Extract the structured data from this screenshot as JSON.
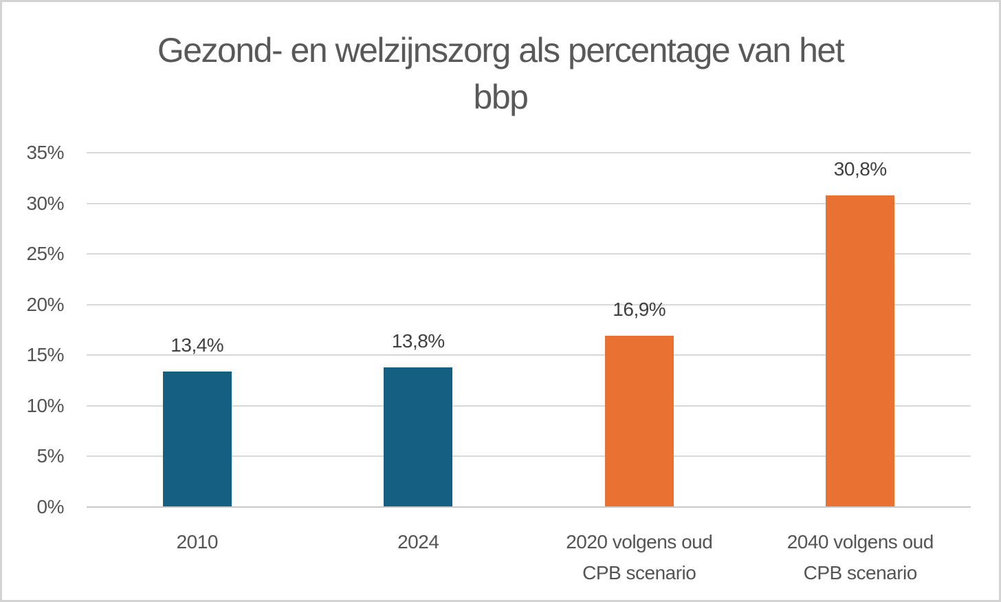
{
  "title_lines": [
    "Gezond- en welzijnszorg als percentage van het",
    "bbp"
  ],
  "chart_data": {
    "type": "bar",
    "title": "Gezond- en welzijnszorg als percentage van het bbp",
    "categories": [
      "2010",
      "2024",
      "2020 volgens oud CPB scenario",
      "2040 volgens oud CPB scenario"
    ],
    "category_label_lines": [
      [
        "2010"
      ],
      [
        "2024"
      ],
      [
        "2020 volgens oud",
        "CPB scenario"
      ],
      [
        "2040 volgens oud",
        "CPB scenario"
      ]
    ],
    "values": [
      13.4,
      13.8,
      16.9,
      30.8
    ],
    "value_labels": [
      "13,4%",
      "13,8%",
      "16,9%",
      "30,8%"
    ],
    "bar_colors": [
      "#156082",
      "#156082",
      "#E97132",
      "#E97132"
    ],
    "xlabel": "",
    "ylabel": "",
    "ylim": [
      0,
      35
    ],
    "y_tick_step": 5,
    "y_tick_labels": [
      "0%",
      "5%",
      "10%",
      "15%",
      "20%",
      "25%",
      "30%",
      "35%"
    ],
    "grid": true,
    "legend": false,
    "colors": {
      "series_blue": "#156082",
      "series_orange": "#E97132",
      "title_text": "#595959",
      "axis_text": "#545454",
      "data_label_text": "#404040",
      "gridline": "#d9d9d9",
      "axis_line": "#c9c9c9",
      "frame_border": "#d3d3d3",
      "background": "#ffffff"
    }
  }
}
